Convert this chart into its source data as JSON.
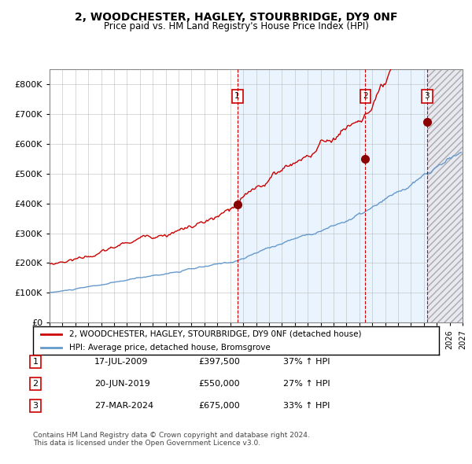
{
  "title": "2, WOODCHESTER, HAGLEY, STOURBRIDGE, DY9 0NF",
  "subtitle": "Price paid vs. HM Land Registry's House Price Index (HPI)",
  "legend_line1": "2, WOODCHESTER, HAGLEY, STOURBRIDGE, DY9 0NF (detached house)",
  "legend_line2": "HPI: Average price, detached house, Bromsgrove",
  "sale1_date": "17-JUL-2009",
  "sale1_price": 397500,
  "sale1_pct": "37%",
  "sale2_date": "20-JUN-2019",
  "sale2_price": 550000,
  "sale2_pct": "27%",
  "sale3_date": "27-MAR-2024",
  "sale3_price": 675000,
  "sale3_pct": "33%",
  "footer1": "Contains HM Land Registry data © Crown copyright and database right 2024.",
  "footer2": "This data is licensed under the Open Government Licence v3.0.",
  "red_color": "#cc0000",
  "blue_color": "#6699cc",
  "bg_shaded": "#ddeeff",
  "ylim": [
    0,
    850000
  ],
  "yticks": [
    0,
    100000,
    200000,
    300000,
    400000,
    500000,
    600000,
    700000,
    800000
  ],
  "xstart_year": 1995,
  "xend_year": 2027,
  "sale1_year": 2009.54,
  "sale2_year": 2019.47,
  "sale3_year": 2024.23
}
